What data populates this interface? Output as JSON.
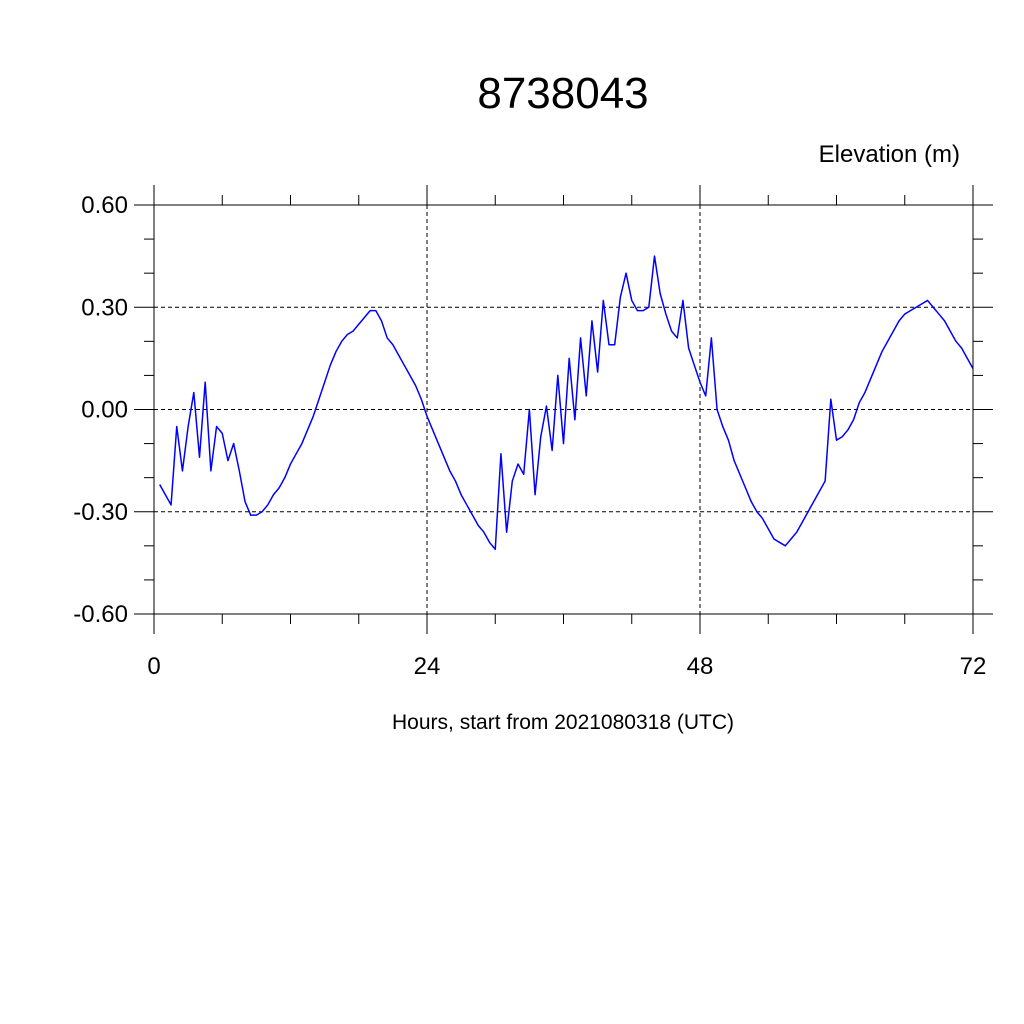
{
  "chart_data": {
    "type": "line",
    "title": "8738043",
    "units_label": "Elevation (m)",
    "xlabel": "Hours, start from 2021080318 (UTC)",
    "xlim": [
      0,
      72
    ],
    "ylim": [
      -0.6,
      0.6
    ],
    "x_ticks": [
      0,
      24,
      48,
      72
    ],
    "x_tick_labels": [
      "0",
      "24",
      "48",
      "72"
    ],
    "y_ticks": [
      0.6,
      0.3,
      0.0,
      -0.3,
      -0.6
    ],
    "y_tick_labels": [
      "0.60",
      "0.30",
      "0.00",
      "-0.30",
      "-0.60"
    ],
    "x_minor_step": 6,
    "y_minor_step": 0.1,
    "grid": true,
    "series": [
      {
        "color": "#0000ff",
        "x": [
          0.5,
          1.0,
          1.5,
          2.0,
          2.5,
          3.0,
          3.5,
          4.0,
          4.5,
          5.0,
          5.5,
          6.0,
          6.5,
          7.0,
          7.5,
          8.0,
          8.5,
          9.0,
          9.5,
          10.0,
          10.5,
          11.0,
          11.5,
          12.0,
          12.5,
          13.0,
          13.5,
          14.0,
          14.5,
          15.0,
          15.5,
          16.0,
          16.5,
          17.0,
          17.5,
          18.0,
          18.5,
          19.0,
          19.5,
          20.0,
          20.5,
          21.0,
          21.5,
          22.0,
          22.5,
          23.0,
          23.5,
          24.0,
          24.5,
          25.0,
          25.5,
          26.0,
          26.5,
          27.0,
          27.5,
          28.0,
          28.5,
          29.0,
          29.5,
          30.0,
          30.5,
          31.0,
          31.5,
          32.0,
          32.5,
          33.0,
          33.5,
          34.0,
          34.5,
          35.0,
          35.5,
          36.0,
          36.5,
          37.0,
          37.5,
          38.0,
          38.5,
          39.0,
          39.5,
          40.0,
          40.5,
          41.0,
          41.5,
          42.0,
          42.5,
          43.0,
          43.5,
          44.0,
          44.5,
          45.0,
          45.5,
          46.0,
          46.5,
          47.0,
          47.5,
          48.0,
          48.5,
          49.0,
          49.5,
          50.0,
          50.5,
          51.0,
          51.5,
          52.0,
          52.5,
          53.0,
          53.5,
          54.0,
          54.5,
          55.0,
          55.5,
          56.0,
          56.5,
          57.0,
          57.5,
          58.0,
          58.5,
          59.0,
          59.5,
          60.0,
          60.5,
          61.0,
          61.5,
          62.0,
          62.5,
          63.0,
          63.5,
          64.0,
          64.5,
          65.0,
          65.5,
          66.0,
          66.5,
          67.0,
          67.5,
          68.0,
          68.5,
          69.0,
          69.5,
          70.0,
          70.5,
          71.0,
          71.5,
          72.0
        ],
        "y": [
          -0.22,
          -0.25,
          -0.28,
          -0.05,
          -0.18,
          -0.05,
          0.05,
          -0.14,
          0.08,
          -0.18,
          -0.05,
          -0.07,
          -0.15,
          -0.1,
          -0.18,
          -0.27,
          -0.31,
          -0.31,
          -0.3,
          -0.28,
          -0.25,
          -0.23,
          -0.2,
          -0.16,
          -0.13,
          -0.1,
          -0.06,
          -0.02,
          0.03,
          0.08,
          0.13,
          0.17,
          0.2,
          0.22,
          0.23,
          0.25,
          0.27,
          0.29,
          0.29,
          0.26,
          0.21,
          0.19,
          0.16,
          0.13,
          0.1,
          0.07,
          0.03,
          -0.02,
          -0.06,
          -0.1,
          -0.14,
          -0.18,
          -0.21,
          -0.25,
          -0.28,
          -0.31,
          -0.34,
          -0.36,
          -0.39,
          -0.41,
          -0.13,
          -0.36,
          -0.21,
          -0.16,
          -0.19,
          0.0,
          -0.25,
          -0.08,
          0.01,
          -0.12,
          0.1,
          -0.1,
          0.15,
          -0.03,
          0.21,
          0.04,
          0.26,
          0.11,
          0.32,
          0.19,
          0.19,
          0.33,
          0.4,
          0.32,
          0.29,
          0.29,
          0.3,
          0.45,
          0.34,
          0.28,
          0.23,
          0.21,
          0.32,
          0.18,
          0.13,
          0.08,
          0.04,
          0.21,
          0.0,
          -0.05,
          -0.09,
          -0.15,
          -0.19,
          -0.23,
          -0.27,
          -0.3,
          -0.32,
          -0.35,
          -0.38,
          -0.39,
          -0.4,
          -0.38,
          -0.36,
          -0.33,
          -0.3,
          -0.27,
          -0.24,
          -0.21,
          0.03,
          -0.09,
          -0.08,
          -0.06,
          -0.03,
          0.02,
          0.05,
          0.09,
          0.13,
          0.17,
          0.2,
          0.23,
          0.26,
          0.28,
          0.29,
          0.3,
          0.31,
          0.32,
          0.3,
          0.28,
          0.26,
          0.23,
          0.2,
          0.18,
          0.15,
          0.12
        ]
      }
    ]
  }
}
